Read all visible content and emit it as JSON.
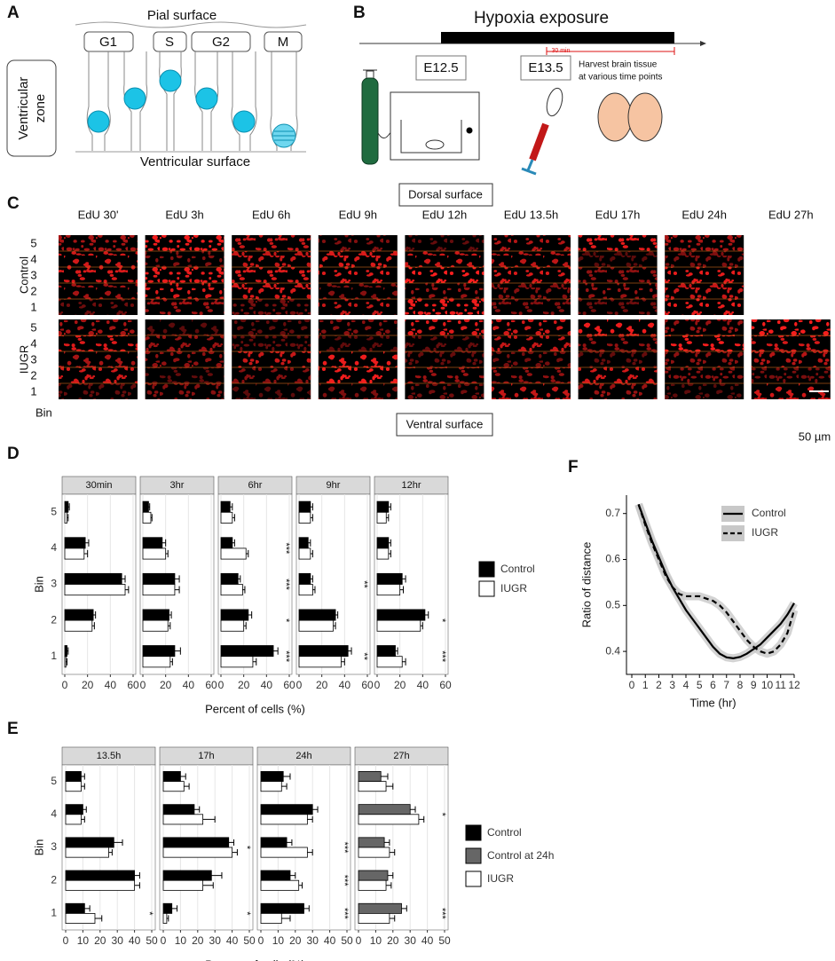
{
  "panel_a": {
    "label": "A",
    "pial_surface": "Pial surface",
    "phases": [
      "G1",
      "S",
      "G2",
      "M"
    ],
    "zone": [
      "Ventricular",
      "zone"
    ],
    "ventricular_surface": "Ventricular surface"
  },
  "panel_b": {
    "label": "B",
    "title": "Hypoxia exposure",
    "timepoints": [
      "E12.5",
      "E13.5"
    ],
    "interval": "30 min",
    "harvest": [
      "Harvest brain tissue",
      "at various time points"
    ]
  },
  "panel_c": {
    "label": "C",
    "dorsal": "Dorsal surface",
    "ventral": "Ventral surface",
    "columns": [
      "EdU 30'",
      "EdU 3h",
      "EdU 6h",
      "EdU 9h",
      "EdU 12h",
      "EdU 13.5h",
      "EdU 17h",
      "EdU 24h",
      "EdU 27h"
    ],
    "rows": [
      "Control",
      "IUGR"
    ],
    "bins": [
      "5",
      "4",
      "3",
      "2",
      "1"
    ],
    "bin_label": "Bin",
    "scale": "50 µm"
  },
  "chart_data": [
    {
      "type": "bar",
      "label": "D",
      "orientation": "horizontal",
      "y_label": "Bin",
      "x_label": "Percent of cells (%)",
      "categories": [
        "1",
        "2",
        "3",
        "4",
        "5"
      ],
      "xlim": [
        0,
        60
      ],
      "xticks": [
        0,
        20,
        40,
        60
      ],
      "grid": true,
      "series": [
        {
          "name": "Control",
          "color": "#000000"
        },
        {
          "name": "IUGR",
          "color": "#ffffff"
        }
      ],
      "facets": [
        {
          "title": "30min",
          "values": [
            [
              2,
              25,
              50,
              18,
              3
            ],
            [
              1,
              24,
              53,
              17,
              2
            ]
          ],
          "errors": [
            [
              1,
              2,
              3,
              3,
              1
            ],
            [
              1,
              2,
              3,
              3,
              1
            ]
          ],
          "stars": [
            null,
            null,
            null,
            null,
            null
          ]
        },
        {
          "title": "3hr",
          "values": [
            [
              28,
              23,
              28,
              17,
              5
            ],
            [
              24,
              22,
              28,
              20,
              7
            ]
          ],
          "errors": [
            [
              5,
              2,
              4,
              3,
              1
            ],
            [
              2,
              2,
              4,
              2,
              1
            ]
          ],
          "stars": [
            null,
            null,
            null,
            null,
            null
          ]
        },
        {
          "title": "6hr",
          "values": [
            [
              46,
              24,
              15,
              10,
              8
            ],
            [
              28,
              20,
              19,
              22,
              10
            ]
          ],
          "errors": [
            [
              4,
              3,
              2,
              2,
              2
            ],
            [
              3,
              2,
              2,
              2,
              2
            ]
          ],
          "stars": [
            "***",
            "*",
            "***",
            "***",
            null
          ]
        },
        {
          "title": "9hr",
          "values": [
            [
              43,
              32,
              10,
              8,
              10
            ],
            [
              37,
              30,
              12,
              10,
              10
            ]
          ],
          "errors": [
            [
              3,
              2,
              2,
              2,
              2
            ],
            [
              3,
              2,
              2,
              2,
              2
            ]
          ],
          "stars": [
            "**",
            null,
            "**",
            null,
            null
          ]
        },
        {
          "title": "12hr",
          "values": [
            [
              16,
              42,
              22,
              10,
              10
            ],
            [
              22,
              38,
              20,
              10,
              8
            ]
          ],
          "errors": [
            [
              2,
              3,
              3,
              2,
              2
            ],
            [
              3,
              2,
              3,
              2,
              2
            ]
          ],
          "stars": [
            "***",
            "*",
            null,
            null,
            null
          ]
        }
      ]
    },
    {
      "type": "bar",
      "label": "E",
      "orientation": "horizontal",
      "y_label": "Bin",
      "x_label": "Percent of cells (%)",
      "categories": [
        "1",
        "2",
        "3",
        "4",
        "5"
      ],
      "xlim": [
        0,
        50
      ],
      "xticks": [
        0,
        10,
        20,
        30,
        40,
        50
      ],
      "grid": true,
      "series": [
        {
          "name": "Control",
          "color": "#000000"
        },
        {
          "name": "Control at 24h",
          "color": "#666666"
        },
        {
          "name": "IUGR",
          "color": "#ffffff"
        }
      ],
      "facets": [
        {
          "title": "13.5h",
          "values": [
            [
              11,
              40,
              28,
              10,
              9
            ],
            null,
            [
              17,
              40,
              25,
              9,
              9
            ]
          ],
          "errors": [
            [
              3,
              3,
              5,
              2,
              2
            ],
            null,
            [
              4,
              3,
              2,
              2,
              2
            ]
          ],
          "stars": [
            "*",
            null,
            null,
            null,
            null
          ]
        },
        {
          "title": "17h",
          "values": [
            [
              5,
              28,
              38,
              18,
              10
            ],
            null,
            [
              2,
              23,
              40,
              23,
              12
            ]
          ],
          "errors": [
            [
              3,
              6,
              3,
              3,
              3
            ],
            null,
            [
              1,
              6,
              3,
              7,
              3
            ]
          ],
          "stars": [
            "*",
            null,
            "*",
            null,
            null
          ]
        },
        {
          "title": "24h",
          "values": [
            [
              25,
              17,
              15,
              30,
              13
            ],
            null,
            [
              12,
              22,
              27,
              27,
              12
            ]
          ],
          "errors": [
            [
              3,
              3,
              3,
              3,
              4
            ],
            null,
            [
              5,
              2,
              3,
              3,
              3
            ]
          ],
          "stars": [
            "***",
            "***",
            "***",
            null,
            null
          ]
        },
        {
          "title": "27h",
          "values": [
            null,
            [
              25,
              17,
              15,
              30,
              13
            ],
            [
              18,
              16,
              18,
              35,
              16
            ]
          ],
          "errors": [
            null,
            [
              3,
              3,
              3,
              3,
              4
            ],
            [
              3,
              3,
              3,
              3,
              4
            ]
          ],
          "stars": [
            "***",
            null,
            null,
            "*",
            null
          ]
        }
      ]
    },
    {
      "type": "line",
      "label": "F",
      "x_label": "Time (hr)",
      "y_label": "Ratio of distance",
      "x": [
        0.5,
        1,
        1.5,
        2,
        2.5,
        3,
        3.5,
        4,
        4.5,
        5,
        5.5,
        6,
        6.5,
        7,
        7.5,
        8,
        8.5,
        9,
        9.5,
        10,
        10.5,
        11,
        11.5,
        12
      ],
      "xlim": [
        0,
        12
      ],
      "xticks": [
        0,
        1,
        2,
        3,
        4,
        5,
        6,
        7,
        8,
        9,
        10,
        11,
        12
      ],
      "ylim": [
        0.35,
        0.74
      ],
      "yticks": [
        0.4,
        0.5,
        0.6,
        0.7
      ],
      "band_color": "#c8c8c8",
      "series": [
        {
          "name": "Control",
          "color": "#000000",
          "dash": "solid",
          "values": [
            0.72,
            0.68,
            0.64,
            0.605,
            0.57,
            0.54,
            0.515,
            0.49,
            0.47,
            0.45,
            0.43,
            0.41,
            0.395,
            0.387,
            0.385,
            0.388,
            0.395,
            0.405,
            0.415,
            0.43,
            0.445,
            0.46,
            0.48,
            0.505
          ]
        },
        {
          "name": "IUGR",
          "color": "#000000",
          "dash": "dashed",
          "values": [
            0.72,
            0.675,
            0.635,
            0.6,
            0.565,
            0.54,
            0.525,
            0.52,
            0.52,
            0.52,
            0.515,
            0.51,
            0.5,
            0.485,
            0.465,
            0.445,
            0.425,
            0.41,
            0.4,
            0.395,
            0.4,
            0.415,
            0.44,
            0.49
          ]
        }
      ]
    }
  ]
}
